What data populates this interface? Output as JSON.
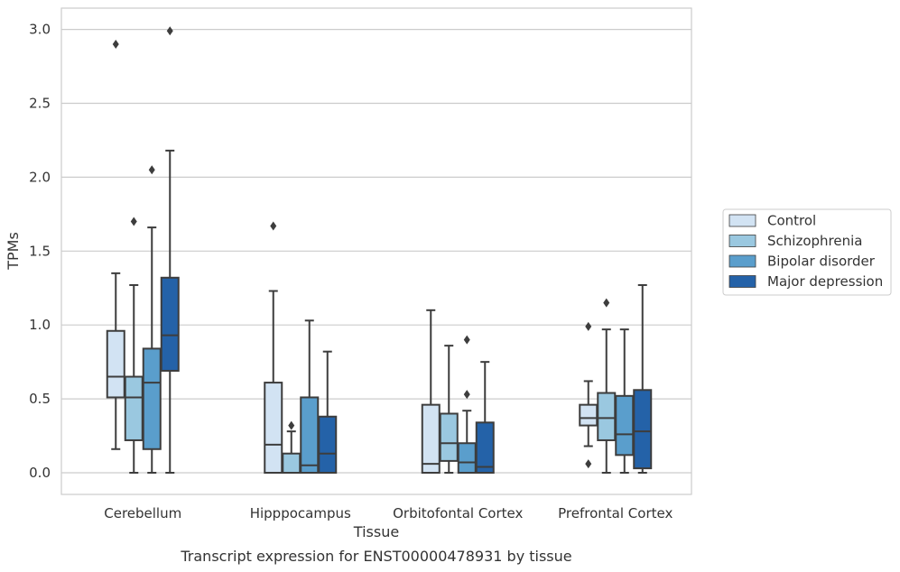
{
  "chart_data": {
    "type": "box",
    "caption": "Transcript expression for ENST00000478931 by tissue",
    "xlabel": "Tissue",
    "ylabel": "TPMs",
    "ylim": [
      -0.14,
      3.14
    ],
    "yticks": [
      "0.0",
      "0.5",
      "1.0",
      "1.5",
      "2.0",
      "2.5",
      "3.0"
    ],
    "grid": true,
    "legend_position": "right",
    "categories": [
      "Cerebellum",
      "Hipppocampus",
      "Orbitofontal Cortex",
      "Prefrontal Cortex"
    ],
    "series": [
      {
        "name": "Control",
        "color": "#d2e3f3",
        "boxes": [
          {
            "whislo": 0.16,
            "q1": 0.51,
            "med": 0.65,
            "q3": 0.96,
            "whishi": 1.35,
            "fliers": [
              2.9
            ]
          },
          {
            "whislo": 0.0,
            "q1": 0.0,
            "med": 0.19,
            "q3": 0.61,
            "whishi": 1.23,
            "fliers": [
              1.67
            ]
          },
          {
            "whislo": 0.0,
            "q1": 0.0,
            "med": 0.06,
            "q3": 0.46,
            "whishi": 1.1,
            "fliers": []
          },
          {
            "whislo": 0.18,
            "q1": 0.32,
            "med": 0.37,
            "q3": 0.46,
            "whishi": 0.62,
            "fliers": [
              0.06,
              0.99
            ]
          }
        ]
      },
      {
        "name": "Schizophrenia",
        "color": "#9ac8e0",
        "boxes": [
          {
            "whislo": 0.0,
            "q1": 0.22,
            "med": 0.51,
            "q3": 0.65,
            "whishi": 1.27,
            "fliers": [
              1.7
            ]
          },
          {
            "whislo": 0.0,
            "q1": 0.0,
            "med": 0.0,
            "q3": 0.13,
            "whishi": 0.28,
            "fliers": [
              0.32
            ]
          },
          {
            "whislo": 0.0,
            "q1": 0.08,
            "med": 0.2,
            "q3": 0.4,
            "whishi": 0.86,
            "fliers": []
          },
          {
            "whislo": 0.0,
            "q1": 0.22,
            "med": 0.37,
            "q3": 0.54,
            "whishi": 0.97,
            "fliers": [
              1.15
            ]
          }
        ]
      },
      {
        "name": "Bipolar disorder",
        "color": "#5a9ecc",
        "boxes": [
          {
            "whislo": 0.0,
            "q1": 0.16,
            "med": 0.61,
            "q3": 0.84,
            "whishi": 1.66,
            "fliers": [
              2.05
            ]
          },
          {
            "whislo": 0.0,
            "q1": 0.0,
            "med": 0.05,
            "q3": 0.51,
            "whishi": 1.03,
            "fliers": []
          },
          {
            "whislo": 0.0,
            "q1": 0.0,
            "med": 0.07,
            "q3": 0.2,
            "whishi": 0.42,
            "fliers": [
              0.53,
              0.9
            ]
          },
          {
            "whislo": 0.0,
            "q1": 0.12,
            "med": 0.26,
            "q3": 0.52,
            "whishi": 0.97,
            "fliers": []
          }
        ]
      },
      {
        "name": "Major depression",
        "color": "#2462a8",
        "boxes": [
          {
            "whislo": 0.0,
            "q1": 0.69,
            "med": 0.93,
            "q3": 1.32,
            "whishi": 2.18,
            "fliers": [
              2.99
            ]
          },
          {
            "whislo": 0.0,
            "q1": 0.0,
            "med": 0.13,
            "q3": 0.38,
            "whishi": 0.82,
            "fliers": []
          },
          {
            "whislo": 0.0,
            "q1": 0.0,
            "med": 0.04,
            "q3": 0.34,
            "whishi": 0.75,
            "fliers": []
          },
          {
            "whislo": 0.0,
            "q1": 0.03,
            "med": 0.28,
            "q3": 0.56,
            "whishi": 1.27,
            "fliers": []
          }
        ]
      }
    ]
  }
}
